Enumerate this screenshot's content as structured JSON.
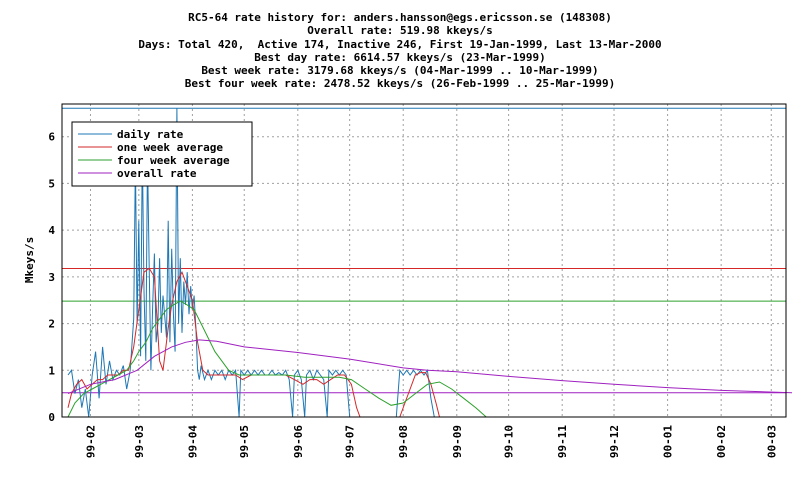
{
  "header": {
    "line1": "RC5-64 rate history for: anders.hansson@egs.ericsson.se (148308)",
    "line2": "Overall rate: 519.98 kkeys/s",
    "line3": "Days: Total 420,  Active 174, Inactive 246, First 19-Jan-1999, Last 13-Mar-2000",
    "line4": "Best day rate: 6614.57 kkeys/s (23-Mar-1999)",
    "line5": "Best week rate: 3179.68 kkeys/s (04-Mar-1999 .. 10-Mar-1999)",
    "line6": "Best four week rate: 2478.52 kkeys/s (26-Feb-1999 .. 25-Mar-1999)"
  },
  "chart_data": {
    "type": "line",
    "ylabel": "Mkeys/s",
    "ylim": [
      0,
      6.7
    ],
    "yticks": [
      "0",
      "1",
      "2",
      "3",
      "4",
      "5",
      "6"
    ],
    "xlim": [
      "1999-01-19",
      "2000-03-13"
    ],
    "xticks": [
      {
        "date": "1999-02-01",
        "label": "99-02"
      },
      {
        "date": "1999-03-01",
        "label": "99-03"
      },
      {
        "date": "1999-04-01",
        "label": "99-04"
      },
      {
        "date": "1999-05-01",
        "label": "99-05"
      },
      {
        "date": "1999-06-01",
        "label": "99-06"
      },
      {
        "date": "1999-07-01",
        "label": "99-07"
      },
      {
        "date": "1999-08-01",
        "label": "99-08"
      },
      {
        "date": "1999-09-01",
        "label": "99-09"
      },
      {
        "date": "1999-10-01",
        "label": "99-10"
      },
      {
        "date": "1999-11-01",
        "label": "99-11"
      },
      {
        "date": "1999-12-01",
        "label": "99-12"
      },
      {
        "date": "2000-01-01",
        "label": "00-01"
      },
      {
        "date": "2000-02-01",
        "label": "00-02"
      },
      {
        "date": "2000-03-01",
        "label": "00-03"
      }
    ],
    "grid": true,
    "legend_position": "top-left",
    "reference_lines": [
      {
        "y": 6.61,
        "color": "#1f77b4"
      },
      {
        "y": 3.18,
        "color": "#d62728"
      },
      {
        "y": 2.48,
        "color": "#2ca02c"
      },
      {
        "y": 0.52,
        "color": "#a020c0"
      }
    ],
    "series": [
      {
        "name": "daily rate",
        "color": "#1f77b4",
        "points": [
          [
            "1999-01-19",
            0.9
          ],
          [
            "1999-01-21",
            1.0
          ],
          [
            "1999-01-23",
            0.5
          ],
          [
            "1999-01-25",
            0.8
          ],
          [
            "1999-01-27",
            0.2
          ],
          [
            "1999-01-29",
            0.6
          ],
          [
            "1999-01-31",
            0.0
          ],
          [
            "1999-02-02",
            0.9
          ],
          [
            "1999-02-04",
            1.4
          ],
          [
            "1999-02-06",
            0.4
          ],
          [
            "1999-02-08",
            1.5
          ],
          [
            "1999-02-10",
            0.7
          ],
          [
            "1999-02-12",
            1.2
          ],
          [
            "1999-02-14",
            0.8
          ],
          [
            "1999-02-16",
            1.0
          ],
          [
            "1999-02-18",
            0.9
          ],
          [
            "1999-02-20",
            1.1
          ],
          [
            "1999-02-22",
            0.6
          ],
          [
            "1999-02-24",
            1.0
          ],
          [
            "1999-02-26",
            2.1
          ],
          [
            "1999-02-27",
            5.5
          ],
          [
            "1999-02-28",
            2.0
          ],
          [
            "1999-03-01",
            4.2
          ],
          [
            "1999-03-02",
            1.3
          ],
          [
            "1999-03-03",
            5.8
          ],
          [
            "1999-03-04",
            2.7
          ],
          [
            "1999-03-05",
            1.2
          ],
          [
            "1999-03-06",
            5.6
          ],
          [
            "1999-03-07",
            3.2
          ],
          [
            "1999-03-08",
            1.0
          ],
          [
            "1999-03-09",
            2.4
          ],
          [
            "1999-03-10",
            3.5
          ],
          [
            "1999-03-11",
            1.6
          ],
          [
            "1999-03-12",
            2.0
          ],
          [
            "1999-03-13",
            3.4
          ],
          [
            "1999-03-14",
            1.8
          ],
          [
            "1999-03-15",
            2.6
          ],
          [
            "1999-03-17",
            1.7
          ],
          [
            "1999-03-18",
            4.2
          ],
          [
            "1999-03-19",
            1.6
          ],
          [
            "1999-03-20",
            3.6
          ],
          [
            "1999-03-21",
            2.2
          ],
          [
            "1999-03-22",
            1.4
          ],
          [
            "1999-03-23",
            6.61
          ],
          [
            "1999-03-24",
            2.0
          ],
          [
            "1999-03-25",
            3.4
          ],
          [
            "1999-03-26",
            1.8
          ],
          [
            "1999-03-27",
            2.9
          ],
          [
            "1999-03-28",
            2.4
          ],
          [
            "1999-03-29",
            3.1
          ],
          [
            "1999-03-30",
            2.2
          ],
          [
            "1999-03-31",
            2.8
          ],
          [
            "1999-04-01",
            2.3
          ],
          [
            "1999-04-02",
            2.6
          ],
          [
            "1999-04-03",
            1.9
          ],
          [
            "1999-04-04",
            1.0
          ],
          [
            "1999-04-05",
            0.8
          ],
          [
            "1999-04-06",
            1.1
          ],
          [
            "1999-04-08",
            0.8
          ],
          [
            "1999-04-10",
            1.0
          ],
          [
            "1999-04-12",
            0.8
          ],
          [
            "1999-04-14",
            1.0
          ],
          [
            "1999-04-16",
            0.9
          ],
          [
            "1999-04-18",
            1.0
          ],
          [
            "1999-04-20",
            0.8
          ],
          [
            "1999-04-22",
            1.0
          ],
          [
            "1999-04-24",
            0.9
          ],
          [
            "1999-04-26",
            1.0
          ],
          [
            "1999-04-28",
            0.0
          ],
          [
            "1999-04-29",
            1.0
          ],
          [
            "1999-05-01",
            0.9
          ],
          [
            "1999-05-03",
            1.0
          ],
          [
            "1999-05-05",
            0.9
          ],
          [
            "1999-05-07",
            1.0
          ],
          [
            "1999-05-09",
            0.9
          ],
          [
            "1999-05-11",
            1.0
          ],
          [
            "1999-05-13",
            0.9
          ],
          [
            "1999-05-15",
            0.9
          ],
          [
            "1999-05-17",
            1.0
          ],
          [
            "1999-05-19",
            0.9
          ],
          [
            "1999-05-21",
            0.95
          ],
          [
            "1999-05-23",
            0.9
          ],
          [
            "1999-05-25",
            1.0
          ],
          [
            "1999-05-27",
            0.8
          ],
          [
            "1999-05-29",
            0.0
          ],
          [
            "1999-05-30",
            0.9
          ],
          [
            "1999-06-01",
            1.0
          ],
          [
            "1999-06-03",
            0.8
          ],
          [
            "1999-06-05",
            0.0
          ],
          [
            "1999-06-06",
            0.9
          ],
          [
            "1999-06-08",
            1.0
          ],
          [
            "1999-06-10",
            0.8
          ],
          [
            "1999-06-12",
            1.0
          ],
          [
            "1999-06-14",
            0.9
          ],
          [
            "1999-06-16",
            0.8
          ],
          [
            "1999-06-18",
            0.0
          ],
          [
            "1999-06-19",
            1.0
          ],
          [
            "1999-06-21",
            0.9
          ],
          [
            "1999-06-23",
            1.0
          ],
          [
            "1999-06-25",
            0.9
          ],
          [
            "1999-06-27",
            1.0
          ],
          [
            "1999-06-29",
            0.9
          ],
          [
            "1999-07-01",
            0.0
          ],
          [
            "1999-07-03",
            0.0
          ],
          [
            "1999-07-28",
            0.0
          ],
          [
            "1999-07-30",
            1.0
          ],
          [
            "1999-08-01",
            0.9
          ],
          [
            "1999-08-03",
            1.0
          ],
          [
            "1999-08-05",
            0.9
          ],
          [
            "1999-08-07",
            1.0
          ],
          [
            "1999-08-09",
            0.9
          ],
          [
            "1999-08-11",
            1.0
          ],
          [
            "1999-08-13",
            0.9
          ],
          [
            "1999-08-15",
            1.0
          ],
          [
            "1999-08-17",
            0.4
          ],
          [
            "1999-08-19",
            0.0
          ]
        ]
      },
      {
        "name": "one week average",
        "color": "#d62728",
        "points": [
          [
            "1999-01-19",
            0.2
          ],
          [
            "1999-01-21",
            0.5
          ],
          [
            "1999-01-24",
            0.7
          ],
          [
            "1999-01-27",
            0.8
          ],
          [
            "1999-01-30",
            0.6
          ],
          [
            "1999-02-02",
            0.7
          ],
          [
            "1999-02-05",
            0.8
          ],
          [
            "1999-02-08",
            0.8
          ],
          [
            "1999-02-11",
            0.9
          ],
          [
            "1999-02-14",
            0.9
          ],
          [
            "1999-02-17",
            0.9
          ],
          [
            "1999-02-20",
            1.0
          ],
          [
            "1999-02-23",
            1.0
          ],
          [
            "1999-02-26",
            1.5
          ],
          [
            "1999-03-01",
            2.3
          ],
          [
            "1999-03-04",
            3.1
          ],
          [
            "1999-03-07",
            3.18
          ],
          [
            "1999-03-10",
            3.0
          ],
          [
            "1999-03-13",
            1.2
          ],
          [
            "1999-03-15",
            1.0
          ],
          [
            "1999-03-18",
            1.9
          ],
          [
            "1999-03-20",
            2.4
          ],
          [
            "1999-03-23",
            2.9
          ],
          [
            "1999-03-26",
            3.1
          ],
          [
            "1999-03-29",
            2.8
          ],
          [
            "1999-04-01",
            2.5
          ],
          [
            "1999-04-04",
            1.6
          ],
          [
            "1999-04-07",
            1.0
          ],
          [
            "1999-04-10",
            0.9
          ],
          [
            "1999-04-14",
            0.9
          ],
          [
            "1999-04-18",
            0.9
          ],
          [
            "1999-04-22",
            0.9
          ],
          [
            "1999-04-26",
            0.9
          ],
          [
            "1999-04-30",
            0.8
          ],
          [
            "1999-05-05",
            0.9
          ],
          [
            "1999-05-10",
            0.9
          ],
          [
            "1999-05-15",
            0.9
          ],
          [
            "1999-05-20",
            0.9
          ],
          [
            "1999-05-25",
            0.9
          ],
          [
            "1999-05-30",
            0.8
          ],
          [
            "1999-06-04",
            0.7
          ],
          [
            "1999-06-08",
            0.8
          ],
          [
            "1999-06-12",
            0.8
          ],
          [
            "1999-06-16",
            0.7
          ],
          [
            "1999-06-20",
            0.8
          ],
          [
            "1999-06-24",
            0.9
          ],
          [
            "1999-06-28",
            0.9
          ],
          [
            "1999-07-02",
            0.7
          ],
          [
            "1999-07-05",
            0.2
          ],
          [
            "1999-07-07",
            0.0
          ],
          [
            "1999-07-30",
            0.0
          ],
          [
            "1999-08-02",
            0.3
          ],
          [
            "1999-08-05",
            0.6
          ],
          [
            "1999-08-08",
            0.9
          ],
          [
            "1999-08-11",
            0.95
          ],
          [
            "1999-08-14",
            0.95
          ],
          [
            "1999-08-17",
            0.7
          ],
          [
            "1999-08-20",
            0.3
          ],
          [
            "1999-08-22",
            0.0
          ]
        ]
      },
      {
        "name": "four week average",
        "color": "#2ca02c",
        "points": [
          [
            "1999-01-19",
            0.0
          ],
          [
            "1999-01-23",
            0.3
          ],
          [
            "1999-01-28",
            0.5
          ],
          [
            "1999-02-02",
            0.6
          ],
          [
            "1999-02-07",
            0.7
          ],
          [
            "1999-02-12",
            0.8
          ],
          [
            "1999-02-17",
            0.9
          ],
          [
            "1999-02-22",
            1.0
          ],
          [
            "1999-02-26",
            1.2
          ],
          [
            "1999-03-01",
            1.4
          ],
          [
            "1999-03-05",
            1.6
          ],
          [
            "1999-03-09",
            1.9
          ],
          [
            "1999-03-13",
            2.1
          ],
          [
            "1999-03-17",
            2.3
          ],
          [
            "1999-03-21",
            2.4
          ],
          [
            "1999-03-25",
            2.48
          ],
          [
            "1999-03-29",
            2.4
          ],
          [
            "1999-04-02",
            2.3
          ],
          [
            "1999-04-06",
            2.0
          ],
          [
            "1999-04-10",
            1.7
          ],
          [
            "1999-04-14",
            1.4
          ],
          [
            "1999-04-18",
            1.2
          ],
          [
            "1999-04-22",
            1.0
          ],
          [
            "1999-04-28",
            0.9
          ],
          [
            "1999-05-05",
            0.9
          ],
          [
            "1999-05-15",
            0.9
          ],
          [
            "1999-05-25",
            0.9
          ],
          [
            "1999-06-05",
            0.85
          ],
          [
            "1999-06-15",
            0.85
          ],
          [
            "1999-06-25",
            0.85
          ],
          [
            "1999-07-02",
            0.8
          ],
          [
            "1999-07-10",
            0.6
          ],
          [
            "1999-07-18",
            0.4
          ],
          [
            "1999-07-25",
            0.25
          ],
          [
            "1999-08-01",
            0.3
          ],
          [
            "1999-08-08",
            0.5
          ],
          [
            "1999-08-15",
            0.7
          ],
          [
            "1999-08-22",
            0.75
          ],
          [
            "1999-08-29",
            0.6
          ],
          [
            "1999-09-05",
            0.4
          ],
          [
            "1999-09-12",
            0.2
          ],
          [
            "1999-09-18",
            0.0
          ]
        ]
      },
      {
        "name": "overall rate",
        "color": "#a020c0",
        "points": [
          [
            "1999-01-19",
            0.5
          ],
          [
            "1999-02-01",
            0.7
          ],
          [
            "1999-02-15",
            0.8
          ],
          [
            "1999-02-28",
            1.0
          ],
          [
            "1999-03-10",
            1.3
          ],
          [
            "1999-03-20",
            1.5
          ],
          [
            "1999-03-28",
            1.6
          ],
          [
            "1999-04-05",
            1.65
          ],
          [
            "1999-04-15",
            1.62
          ],
          [
            "1999-05-01",
            1.5
          ],
          [
            "1999-06-01",
            1.38
          ],
          [
            "1999-07-01",
            1.24
          ],
          [
            "1999-08-01",
            1.05
          ],
          [
            "1999-08-15",
            1.0
          ],
          [
            "1999-09-01",
            0.97
          ],
          [
            "1999-10-01",
            0.87
          ],
          [
            "1999-11-01",
            0.78
          ],
          [
            "1999-12-01",
            0.7
          ],
          [
            "2000-01-01",
            0.63
          ],
          [
            "2000-02-01",
            0.57
          ],
          [
            "2000-03-13",
            0.52
          ]
        ]
      }
    ]
  }
}
